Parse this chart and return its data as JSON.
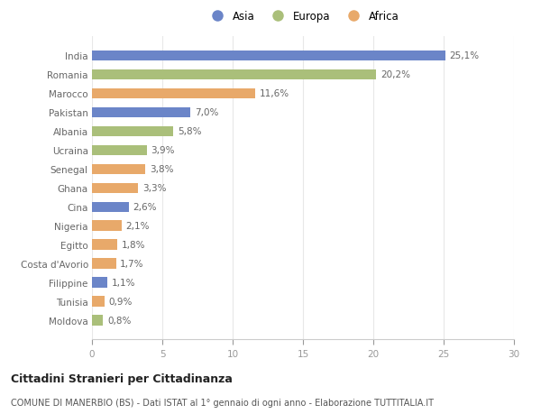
{
  "countries": [
    "India",
    "Romania",
    "Marocco",
    "Pakistan",
    "Albania",
    "Ucraina",
    "Senegal",
    "Ghana",
    "Cina",
    "Nigeria",
    "Egitto",
    "Costa d'Avorio",
    "Filippine",
    "Tunisia",
    "Moldova"
  ],
  "values": [
    25.1,
    20.2,
    11.6,
    7.0,
    5.8,
    3.9,
    3.8,
    3.3,
    2.6,
    2.1,
    1.8,
    1.7,
    1.1,
    0.9,
    0.8
  ],
  "labels": [
    "25,1%",
    "20,2%",
    "11,6%",
    "7,0%",
    "5,8%",
    "3,9%",
    "3,8%",
    "3,3%",
    "2,6%",
    "2,1%",
    "1,8%",
    "1,7%",
    "1,1%",
    "0,9%",
    "0,8%"
  ],
  "continents": [
    "Asia",
    "Europa",
    "Africa",
    "Asia",
    "Europa",
    "Europa",
    "Africa",
    "Africa",
    "Asia",
    "Africa",
    "Africa",
    "Africa",
    "Asia",
    "Africa",
    "Europa"
  ],
  "colors": {
    "Asia": "#6b85c8",
    "Europa": "#aabf7a",
    "Africa": "#e8a96a"
  },
  "title": "Cittadini Stranieri per Cittadinanza",
  "subtitle": "COMUNE DI MANERBIO (BS) - Dati ISTAT al 1° gennaio di ogni anno - Elaborazione TUTTITALIA.IT",
  "xlim": [
    0,
    30
  ],
  "xticks": [
    0,
    5,
    10,
    15,
    20,
    25,
    30
  ],
  "bg_color": "#ffffff",
  "grid_color": "#e8e8e8"
}
